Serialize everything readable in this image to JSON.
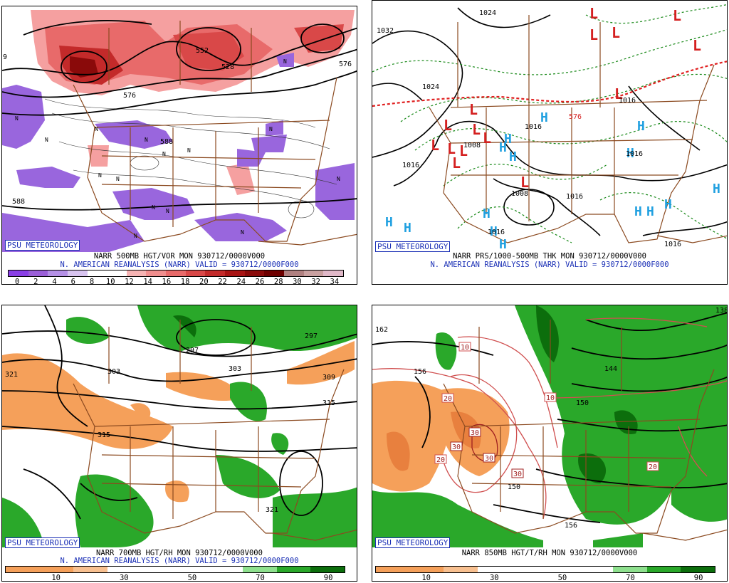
{
  "panels": [
    {
      "badge": "PSU METEOROLOGY",
      "title": "NARR 500MB HGT/VOR MON 930712/0000V000",
      "subtitle": "N. AMERICAN REANALYSIS (NARR) VALID = 930712/0000F000",
      "colorbar": {
        "colors": [
          "#8a3fe6",
          "#9b5fd8",
          "#b590e6",
          "#d8c4f0",
          "#ffffff",
          "#ffffff",
          "#f5b3b3",
          "#f08e8e",
          "#e86a6a",
          "#d94848",
          "#c32a2a",
          "#a81414",
          "#8a0a0a",
          "#6e0000",
          "#b08080",
          "#c9a0a0",
          "#e0b8c8"
        ],
        "ticks": [
          "0",
          "2",
          "4",
          "6",
          "8",
          "10",
          "12",
          "14",
          "16",
          "18",
          "20",
          "22",
          "24",
          "26",
          "28",
          "30",
          "32",
          "34"
        ]
      },
      "contour_labels": [
        "552",
        "528",
        "576",
        "588",
        "588",
        "576",
        "9"
      ]
    },
    {
      "badge": "PSU METEOROLOGY",
      "title": "NARR PRS/1000-500MB THK MON 930712/0000V000",
      "subtitle": "N. AMERICAN REANALYSIS (NARR) VALID = 930712/0000F000",
      "contour_labels": [
        "1024",
        "1032",
        "1024",
        "1016",
        "1008",
        "1016",
        "1008",
        "1016",
        "1016",
        "1016",
        "1016",
        "576",
        "1016"
      ],
      "pressure_centers": {
        "low": "L",
        "high": "H"
      }
    },
    {
      "badge": "PSU METEOROLOGY",
      "title": "NARR 700MB HGT/RH MON 930712/0000V000",
      "subtitle": "N. AMERICAN REANALYSIS (NARR) VALID = 930712/0000F000",
      "colorbar": {
        "colors": [
          "#f5a05a",
          "#f5a05a",
          "#f8c090",
          "#ffffff",
          "#ffffff",
          "#ffffff",
          "#ffffff",
          "#8ee08e",
          "#2aa82a",
          "#0c6e0c"
        ],
        "ticks": [
          "10",
          "30",
          "50",
          "70",
          "90"
        ]
      },
      "contour_labels": [
        "321",
        "303",
        "297",
        "303",
        "309",
        "315",
        "315",
        "321",
        "297"
      ]
    },
    {
      "badge": "PSU METEOROLOGY",
      "title": "NARR 850MB HGT/T/RH MON 930712/0000V000",
      "subtitle": "",
      "colorbar": {
        "colors": [
          "#f5a05a",
          "#f5a05a",
          "#f8c090",
          "#ffffff",
          "#ffffff",
          "#ffffff",
          "#ffffff",
          "#8ee08e",
          "#2aa82a",
          "#0c6e0c"
        ],
        "ticks": [
          "10",
          "30",
          "50",
          "70",
          "90"
        ]
      },
      "contour_labels": [
        "162",
        "156",
        "144",
        "150",
        "150",
        "156",
        "138"
      ],
      "temp_labels": [
        "10",
        "20",
        "30",
        "30",
        "30",
        "30",
        "20",
        "20",
        "10"
      ]
    }
  ]
}
